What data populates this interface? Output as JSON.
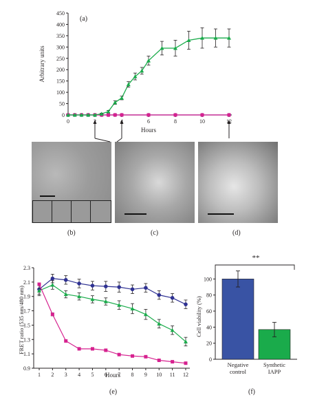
{
  "chart_data": [
    {
      "type": "line",
      "panel_label": "(a)",
      "ylabel": "Arbitrary units",
      "xlabel": "Hours",
      "xlim": [
        0,
        12
      ],
      "ylim": [
        0,
        450
      ],
      "x_ticks": [
        "0",
        "2",
        "4",
        "6",
        "8",
        "10",
        "12"
      ],
      "y_ticks": [
        "0",
        "50",
        "100",
        "150",
        "200",
        "250",
        "300",
        "350",
        "400",
        "450"
      ],
      "grid": false,
      "colors": {
        "green": "#1aab4b",
        "magenta": "#d6218f",
        "blue": "#2e3192"
      },
      "series": [
        {
          "color": "#1aab4b",
          "x": [
            0,
            0.5,
            1,
            1.5,
            2,
            2.5,
            3,
            3.5,
            4,
            4.5,
            5,
            5.5,
            6,
            7,
            8,
            9,
            10,
            11,
            12
          ],
          "y": [
            0,
            0,
            0,
            0,
            0,
            5,
            15,
            55,
            75,
            135,
            170,
            195,
            240,
            295,
            295,
            330,
            340,
            340,
            340
          ],
          "err": [
            0,
            0,
            0,
            0,
            0,
            3,
            5,
            8,
            8,
            12,
            15,
            15,
            20,
            30,
            35,
            40,
            45,
            40,
            40
          ]
        },
        {
          "color": "#d6218f",
          "x": [
            0,
            0.5,
            1,
            1.5,
            2,
            2.5,
            3,
            3.5,
            4,
            6,
            8,
            10,
            12
          ],
          "y": [
            0,
            0,
            0,
            0,
            0,
            0,
            0,
            0,
            0,
            0,
            0,
            0,
            0
          ],
          "err": [
            0,
            0,
            0,
            0,
            0,
            0,
            0,
            0,
            0,
            0,
            0,
            0,
            0
          ]
        },
        {
          "color": "#2e3192",
          "x": [
            0,
            0.5,
            1,
            1.5,
            2,
            2.5,
            3,
            3.5,
            4,
            6,
            8,
            10,
            12
          ],
          "y": [
            0,
            0,
            0,
            0,
            0,
            0,
            0,
            0,
            0,
            0,
            0,
            0,
            0
          ],
          "err": [
            0,
            0,
            0,
            0,
            0,
            0,
            0,
            0,
            0,
            0,
            0,
            0,
            0
          ]
        }
      ],
      "arrow_hours": [
        2,
        4,
        12
      ]
    },
    {
      "type": "line",
      "panel_label": "(e)",
      "ylabel": "FRET ratio (535 nm/480 nm)",
      "xlabel": "Hours",
      "xlim": [
        1,
        12
      ],
      "ylim": [
        0.9,
        2.3
      ],
      "x_ticks": [
        "1",
        "2",
        "3",
        "4",
        "5",
        "6",
        "7",
        "8",
        "9",
        "10",
        "11",
        "12"
      ],
      "y_ticks": [
        "0.9",
        "1.1",
        "1.3",
        "1.5",
        "1.7",
        "1.9",
        "2.1",
        "2.3"
      ],
      "grid": false,
      "series": [
        {
          "color": "#2e3192",
          "x": [
            1,
            2,
            3,
            4,
            5,
            6,
            7,
            8,
            9,
            10,
            11,
            12
          ],
          "y": [
            2.0,
            2.15,
            2.13,
            2.08,
            2.05,
            2.04,
            2.03,
            2.0,
            2.02,
            1.92,
            1.88,
            1.79
          ],
          "err": [
            0.07,
            0.06,
            0.06,
            0.06,
            0.06,
            0.07,
            0.07,
            0.06,
            0.06,
            0.06,
            0.06,
            0.06
          ]
        },
        {
          "color": "#1aab4b",
          "x": [
            1,
            2,
            3,
            4,
            5,
            6,
            7,
            8,
            9,
            10,
            11,
            12
          ],
          "y": [
            1.98,
            2.06,
            1.93,
            1.9,
            1.86,
            1.83,
            1.78,
            1.73,
            1.65,
            1.52,
            1.43,
            1.27
          ],
          "err": [
            0.07,
            0.06,
            0.05,
            0.05,
            0.05,
            0.05,
            0.06,
            0.07,
            0.07,
            0.06,
            0.06,
            0.06
          ]
        },
        {
          "color": "#d6218f",
          "x": [
            1,
            2,
            3,
            4,
            5,
            6,
            7,
            8,
            9,
            10,
            11,
            12
          ],
          "y": [
            2.07,
            1.65,
            1.28,
            1.17,
            1.17,
            1.15,
            1.09,
            1.07,
            1.06,
            1.01,
            0.99,
            0.97
          ],
          "err": [
            0.02,
            0.02,
            0.01,
            0.01,
            0.01,
            0.01,
            0.01,
            0.01,
            0.01,
            0.01,
            0.01,
            0.01
          ]
        }
      ]
    },
    {
      "type": "bar",
      "panel_label": "(f)",
      "ylabel": "Cell viability (%)",
      "ylim": [
        0,
        120
      ],
      "y_ticks": [
        "0",
        "20",
        "40",
        "60",
        "80",
        "100"
      ],
      "categories": [
        [
          "Negative",
          "control"
        ],
        [
          "Synthetic",
          "IAPP"
        ]
      ],
      "values": [
        100,
        37
      ],
      "err": [
        10,
        9
      ],
      "colors": [
        "#3953a4",
        "#1aab4b"
      ],
      "significance": "**",
      "grid": false
    }
  ],
  "micrographs": [
    {
      "label": "(b)"
    },
    {
      "label": "(c)"
    },
    {
      "label": "(d)"
    }
  ]
}
